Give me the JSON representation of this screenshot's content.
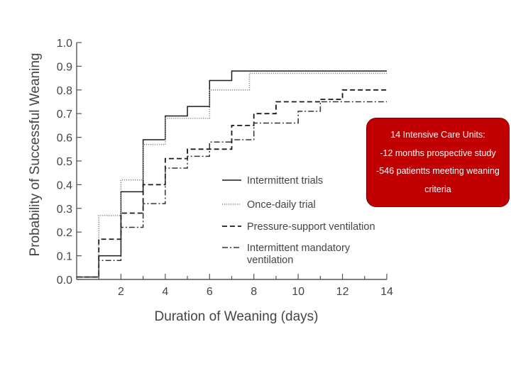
{
  "chart_data": {
    "type": "line",
    "title": "",
    "xlabel": "Duration of Weaning (days)",
    "ylabel": "Probability of Successful Weaning",
    "xlim": [
      0,
      14
    ],
    "ylim": [
      0,
      1.0
    ],
    "xticks": [
      2,
      4,
      6,
      8,
      10,
      12,
      14
    ],
    "yticks": [
      0.0,
      0.1,
      0.2,
      0.3,
      0.4,
      0.5,
      0.6,
      0.7,
      0.8,
      0.9,
      1.0
    ],
    "ytick_labels": [
      "0.0",
      "0.1",
      "0.2",
      "0.3",
      "0.4",
      "0.5",
      "0.6",
      "0.7",
      "0.8",
      "0.9",
      "1.0"
    ],
    "grid": false,
    "legend_position": "center-right",
    "series": [
      {
        "name": "Intermittent trials",
        "style": "solid",
        "steps": [
          [
            0,
            0.01
          ],
          [
            1,
            0.1
          ],
          [
            2,
            0.37
          ],
          [
            3,
            0.59
          ],
          [
            4,
            0.69
          ],
          [
            5,
            0.73
          ],
          [
            6,
            0.84
          ],
          [
            7,
            0.88
          ],
          [
            14,
            0.88
          ]
        ]
      },
      {
        "name": "Once-daily trial",
        "style": "dotted",
        "steps": [
          [
            0,
            0.01
          ],
          [
            1,
            0.27
          ],
          [
            2,
            0.42
          ],
          [
            3,
            0.57
          ],
          [
            4,
            0.68
          ],
          [
            6,
            0.8
          ],
          [
            7.8,
            0.87
          ],
          [
            14,
            0.87
          ]
        ]
      },
      {
        "name": "Pressure-support ventilation",
        "style": "dashed",
        "steps": [
          [
            0,
            0.01
          ],
          [
            1,
            0.17
          ],
          [
            2,
            0.28
          ],
          [
            3,
            0.4
          ],
          [
            4,
            0.51
          ],
          [
            5,
            0.55
          ],
          [
            7,
            0.65
          ],
          [
            8,
            0.7
          ],
          [
            9,
            0.75
          ],
          [
            11,
            0.76
          ],
          [
            12,
            0.8
          ],
          [
            14,
            0.8
          ]
        ]
      },
      {
        "name": "Intermittent mandatory ventilation",
        "style": "dashdot",
        "steps": [
          [
            0,
            0.01
          ],
          [
            1,
            0.08
          ],
          [
            2,
            0.22
          ],
          [
            3,
            0.32
          ],
          [
            4,
            0.47
          ],
          [
            5,
            0.52
          ],
          [
            6,
            0.58
          ],
          [
            7,
            0.59
          ],
          [
            8,
            0.66
          ],
          [
            10,
            0.71
          ],
          [
            11,
            0.75
          ],
          [
            12,
            0.75
          ],
          [
            14,
            0.75
          ]
        ]
      }
    ]
  },
  "legend": {
    "items": [
      {
        "label": "Intermittent trials",
        "style": "solid"
      },
      {
        "label": "Once-daily trial",
        "style": "dotted"
      },
      {
        "label": "Pressure-support ventilation",
        "style": "dashed"
      },
      {
        "label_lines": [
          "Intermittent mandatory",
          "ventilation"
        ],
        "style": "dashdot"
      }
    ]
  },
  "callout": {
    "lines": [
      "14 Intensive Care Units:",
      "-12 months prospective study",
      "-546 patientts meeting weaning",
      "criteria"
    ],
    "background_color": "#c00000",
    "text_color": "#ffffff"
  },
  "colors": {
    "line": "#1a1a1a",
    "axis": "#555555",
    "text": "#444444"
  }
}
